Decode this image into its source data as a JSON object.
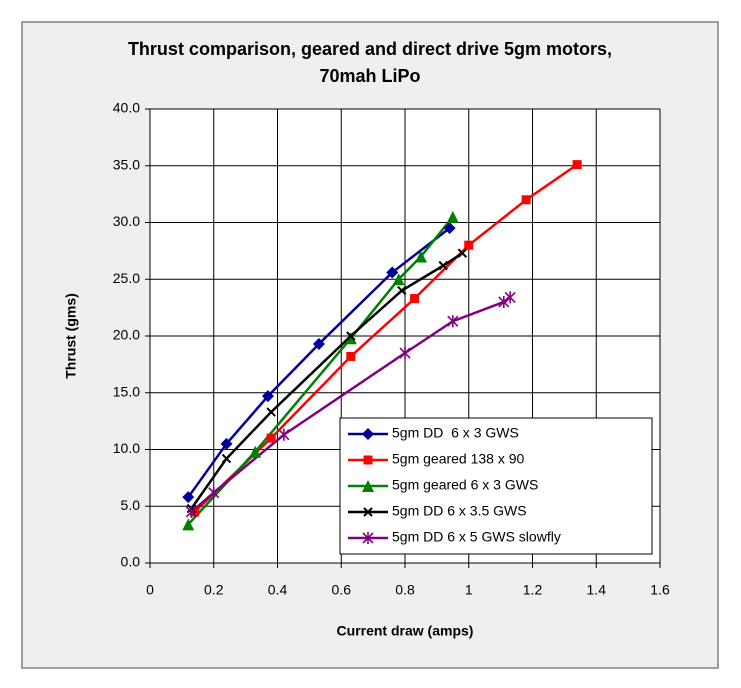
{
  "chart_data": {
    "type": "line",
    "title": "Thrust comparison, geared and direct drive 5gm motors, 70mah LiPo",
    "x_label": "Current draw (amps)",
    "y_label": "Thrust (gms)",
    "xlim": [
      0,
      1.6
    ],
    "xticks": [
      0,
      0.2,
      0.4,
      0.6,
      0.8,
      1,
      1.2,
      1.4,
      1.6
    ],
    "ylim": [
      0,
      40
    ],
    "yticks": [
      {
        "value": 0,
        "label": "0.0"
      },
      {
        "value": 5,
        "label": "5.0"
      },
      {
        "value": 10,
        "label": "10.0"
      },
      {
        "value": 15,
        "label": "15.0"
      },
      {
        "value": 20,
        "label": "20.0"
      },
      {
        "value": 25,
        "label": "25.0"
      },
      {
        "value": 30,
        "label": "30.0"
      },
      {
        "value": 35,
        "label": "35.0"
      },
      {
        "value": 40,
        "label": "40.0"
      }
    ],
    "grid": true,
    "legend": "lower right",
    "series": [
      {
        "name": "5gm DD  6 x 3 GWS",
        "color": "#000099",
        "marker": "diamond",
        "x": [
          0.12,
          0.24,
          0.37,
          0.53,
          0.76,
          0.94
        ],
        "values": [
          5.8,
          10.5,
          14.7,
          19.3,
          25.6,
          29.5
        ]
      },
      {
        "name": "5gm geared 138 x 90",
        "color": "#ff0000",
        "marker": "square",
        "x": [
          0.14,
          0.38,
          0.63,
          0.83,
          1.0,
          1.18,
          1.34
        ],
        "values": [
          4.5,
          11.0,
          18.2,
          23.3,
          28.0,
          32.0,
          35.1
        ]
      },
      {
        "name": "5gm geared 6 x 3 GWS",
        "color": "#008000",
        "marker": "triangle",
        "x": [
          0.12,
          0.33,
          0.63,
          0.78,
          0.85,
          0.95
        ],
        "values": [
          3.4,
          9.8,
          19.8,
          25.0,
          27.0,
          30.5
        ]
      },
      {
        "name": "5gm DD 6 x 3.5 GWS",
        "color": "#000000",
        "marker": "x",
        "x": [
          0.13,
          0.24,
          0.38,
          0.63,
          0.79,
          0.92,
          0.98
        ],
        "values": [
          4.8,
          9.2,
          13.3,
          20.0,
          24.0,
          26.2,
          27.3
        ]
      },
      {
        "name": "5gm DD 6 x 5 GWS slowfly",
        "color": "#800080",
        "marker": "star",
        "x": [
          0.13,
          0.2,
          0.42,
          0.8,
          0.95,
          1.11,
          1.13
        ],
        "values": [
          4.5,
          6.2,
          11.3,
          18.5,
          21.3,
          23.0,
          23.4
        ]
      }
    ]
  }
}
